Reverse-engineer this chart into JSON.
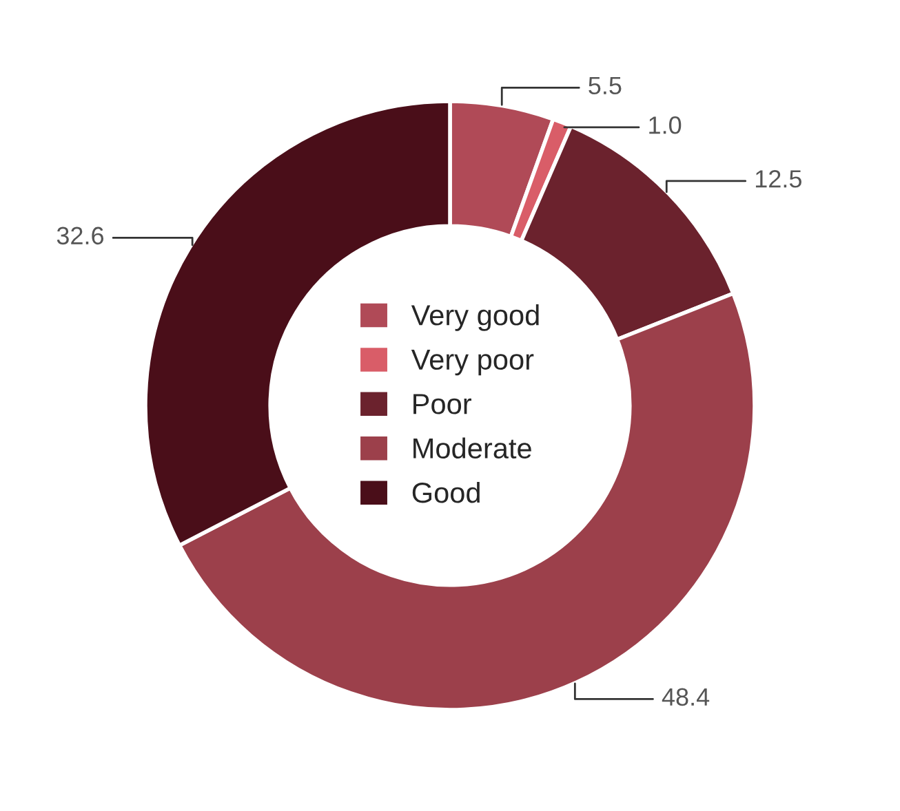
{
  "chart_data": {
    "type": "donut",
    "categories": [
      "Very good",
      "Very poor",
      "Poor",
      "Moderate",
      "Good"
    ],
    "values": [
      5.5,
      1.0,
      12.5,
      48.4,
      32.6
    ],
    "colors": [
      "#b04a57",
      "#d95d68",
      "#6b222d",
      "#9c404b",
      "#4a0e19"
    ],
    "value_labels": [
      "5.5",
      "1.0",
      "12.5",
      "48.4",
      "32.6"
    ],
    "legend": "center"
  }
}
